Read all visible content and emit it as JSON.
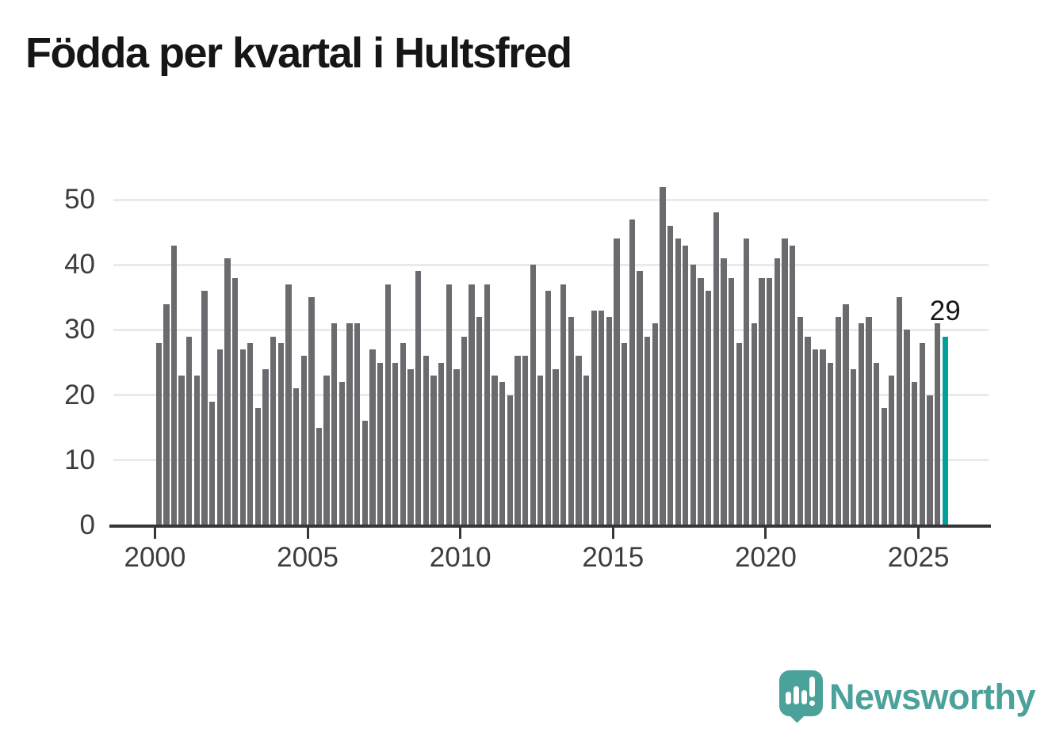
{
  "title": "Födda per kvartal i Hultsfred",
  "annotation": {
    "latest_value_label": "29"
  },
  "branding": {
    "wordmark": "Newsworthy"
  },
  "colors": {
    "bar": "#6B6A6F",
    "highlight": "#00A09B",
    "brand": "#4BA29A",
    "gridline": "#EAEAEA",
    "axis": "#363638",
    "tick_text": "#3D3D3D",
    "title_text": "#161616",
    "background": "#FFFFFF"
  },
  "chart_data": {
    "type": "bar",
    "title": "Födda per kvartal i Hultsfred",
    "xlabel": "",
    "ylabel": "",
    "frequency": "quarterly",
    "x_start": "2000 Q1",
    "x_end": "2025 Q4",
    "x_tick_labels": [
      "2000",
      "2005",
      "2010",
      "2015",
      "2020",
      "2025"
    ],
    "y_ticks": [
      0,
      10,
      20,
      30,
      40,
      50
    ],
    "ylim": [
      0,
      55.5
    ],
    "grid": "horizontal",
    "legend": "none",
    "series": [
      {
        "name": "Födda",
        "values": [
          28,
          34,
          43,
          23,
          29,
          23,
          36,
          19,
          27,
          41,
          38,
          27,
          28,
          18,
          24,
          29,
          28,
          37,
          21,
          26,
          35,
          15,
          23,
          31,
          22,
          31,
          31,
          16,
          27,
          25,
          37,
          25,
          28,
          24,
          39,
          26,
          23,
          25,
          37,
          24,
          29,
          37,
          32,
          37,
          23,
          22,
          20,
          26,
          26,
          40,
          23,
          36,
          24,
          37,
          32,
          26,
          23,
          33,
          33,
          32,
          44,
          28,
          47,
          39,
          29,
          31,
          52,
          46,
          44,
          43,
          40,
          38,
          36,
          48,
          41,
          38,
          28,
          44,
          31,
          38,
          38,
          41,
          44,
          43,
          32,
          29,
          27,
          27,
          25,
          32,
          34,
          24,
          31,
          32,
          25,
          18,
          23,
          35,
          30,
          22,
          28,
          20,
          31,
          29
        ]
      }
    ],
    "highlight": {
      "period": "2025 Q4",
      "index": 103,
      "value": 29,
      "label": "29"
    }
  }
}
